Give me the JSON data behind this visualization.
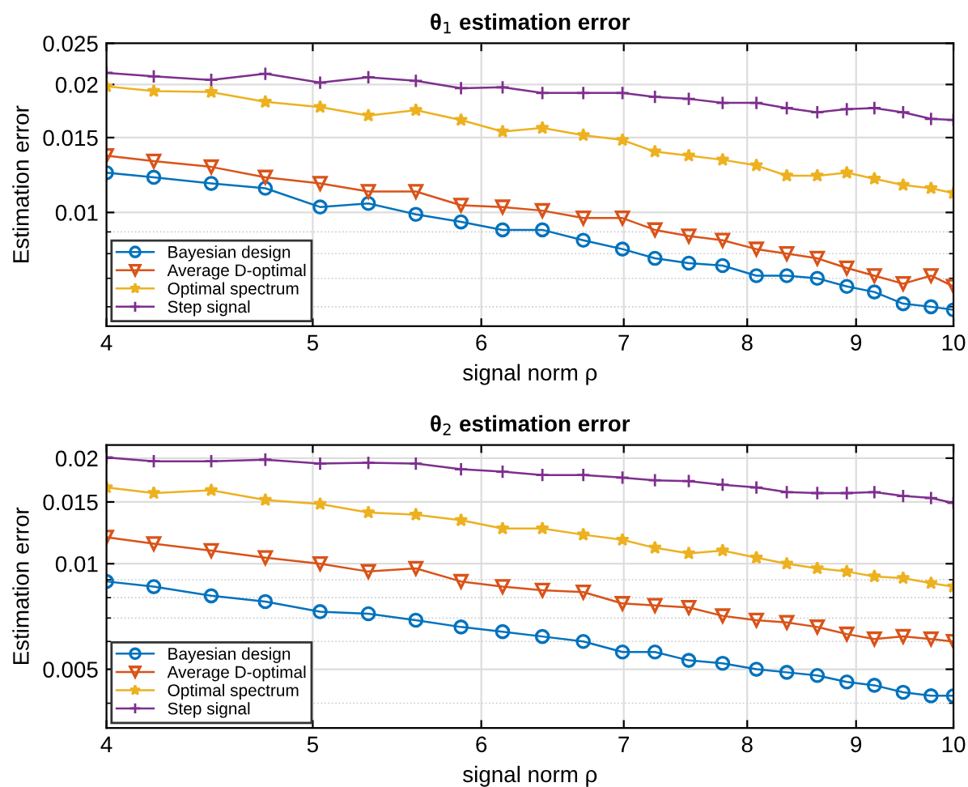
{
  "chart_data": [
    {
      "type": "line",
      "title": "θ$_{1}$ estimation error",
      "xlabel": "signal norm ρ",
      "ylabel": "Estimation error",
      "log": "xy",
      "grid": true,
      "legend": "bottom left",
      "x": [
        4,
        4.21,
        4.48,
        4.75,
        5.04,
        5.31,
        5.59,
        5.87,
        6.14,
        6.41,
        6.7,
        6.99,
        7.24,
        7.51,
        7.79,
        8.08,
        8.35,
        8.63,
        8.91,
        9.18,
        9.47,
        9.76,
        10
      ],
      "xlim": [
        4,
        10
      ],
      "xticks": [
        4,
        5,
        6,
        7,
        8,
        9,
        10
      ],
      "ylim": [
        0.0054,
        0.025
      ],
      "yticks": [
        0.01,
        0.015,
        0.02,
        0.025
      ],
      "series": [
        {
          "name": "Bayesian design",
          "color": "#0072bd",
          "marker": "circle",
          "values": [
            0.0124,
            0.0121,
            0.0117,
            0.0114,
            0.0103,
            0.0105,
            0.0099,
            0.0095,
            0.0091,
            0.0091,
            0.0086,
            0.0082,
            0.0078,
            0.0076,
            0.0075,
            0.0071,
            0.0071,
            0.007,
            0.0067,
            0.0065,
            0.0061,
            0.006,
            0.0059
          ]
        },
        {
          "name": "Average D-optimal",
          "color": "#d95319",
          "marker": "triangle",
          "values": [
            0.0136,
            0.0132,
            0.0128,
            0.0121,
            0.0117,
            0.0112,
            0.0112,
            0.0104,
            0.0103,
            0.0101,
            0.0097,
            0.0097,
            0.0091,
            0.0088,
            0.0086,
            0.0082,
            0.008,
            0.0078,
            0.0074,
            0.0071,
            0.0068,
            0.0071,
            0.0067
          ]
        },
        {
          "name": "Optimal spectrum",
          "color": "#edb120",
          "marker": "star",
          "values": [
            0.0198,
            0.0193,
            0.0192,
            0.0182,
            0.0177,
            0.0169,
            0.0174,
            0.0165,
            0.0155,
            0.0158,
            0.0152,
            0.0148,
            0.0139,
            0.0136,
            0.0133,
            0.0129,
            0.0122,
            0.0122,
            0.0124,
            0.012,
            0.0116,
            0.0114,
            0.0111
          ]
        },
        {
          "name": "Step signal",
          "color": "#7e2f8e",
          "marker": "cross",
          "values": [
            0.0213,
            0.0209,
            0.0205,
            0.0212,
            0.0202,
            0.0208,
            0.0204,
            0.0196,
            0.0197,
            0.0191,
            0.0191,
            0.0191,
            0.0187,
            0.0185,
            0.0181,
            0.0181,
            0.0176,
            0.0172,
            0.0175,
            0.0176,
            0.0172,
            0.0166,
            0.0165
          ]
        }
      ]
    },
    {
      "type": "line",
      "title": "θ$_{2}$ estimation error",
      "xlabel": "signal norm ρ",
      "ylabel": "Estimation error",
      "log": "xy",
      "grid": true,
      "legend": "bottom left",
      "x": [
        4,
        4.21,
        4.48,
        4.75,
        5.04,
        5.31,
        5.59,
        5.87,
        6.14,
        6.41,
        6.7,
        6.99,
        7.24,
        7.51,
        7.79,
        8.08,
        8.35,
        8.63,
        8.91,
        9.18,
        9.47,
        9.76,
        10
      ],
      "xlim": [
        4,
        10
      ],
      "xticks": [
        4,
        5,
        6,
        7,
        8,
        9,
        10
      ],
      "ylim": [
        0.0034,
        0.0218
      ],
      "yticks": [
        0.005,
        0.01,
        0.015,
        0.02
      ],
      "series": [
        {
          "name": "Bayesian design",
          "color": "#0072bd",
          "marker": "circle",
          "values": [
            0.0089,
            0.0086,
            0.0081,
            0.0078,
            0.0073,
            0.0072,
            0.0069,
            0.0066,
            0.0064,
            0.0062,
            0.006,
            0.0056,
            0.0056,
            0.0053,
            0.0052,
            0.005,
            0.0049,
            0.0048,
            0.0046,
            0.0045,
            0.0043,
            0.0042,
            0.0042
          ]
        },
        {
          "name": "Average D-optimal",
          "color": "#d95319",
          "marker": "triangle",
          "values": [
            0.0119,
            0.0114,
            0.0109,
            0.0104,
            0.01,
            0.0095,
            0.0097,
            0.0089,
            0.0086,
            0.0084,
            0.0083,
            0.0077,
            0.0076,
            0.0075,
            0.0071,
            0.0069,
            0.0068,
            0.0066,
            0.0063,
            0.0061,
            0.0062,
            0.0061,
            0.006
          ]
        },
        {
          "name": "Optimal spectrum",
          "color": "#edb120",
          "marker": "star",
          "values": [
            0.0165,
            0.0159,
            0.0162,
            0.0152,
            0.0148,
            0.014,
            0.0138,
            0.0133,
            0.0126,
            0.0126,
            0.0121,
            0.0117,
            0.0111,
            0.0107,
            0.0109,
            0.0104,
            0.01,
            0.0097,
            0.0095,
            0.0092,
            0.0091,
            0.0088,
            0.0086
          ]
        },
        {
          "name": "Step signal",
          "color": "#7e2f8e",
          "marker": "cross",
          "values": [
            0.0201,
            0.0196,
            0.0196,
            0.0198,
            0.0193,
            0.0194,
            0.0193,
            0.0186,
            0.0183,
            0.0179,
            0.0179,
            0.0176,
            0.0173,
            0.0172,
            0.0168,
            0.0165,
            0.016,
            0.0159,
            0.0159,
            0.016,
            0.0156,
            0.0154,
            0.0149
          ]
        }
      ]
    }
  ]
}
